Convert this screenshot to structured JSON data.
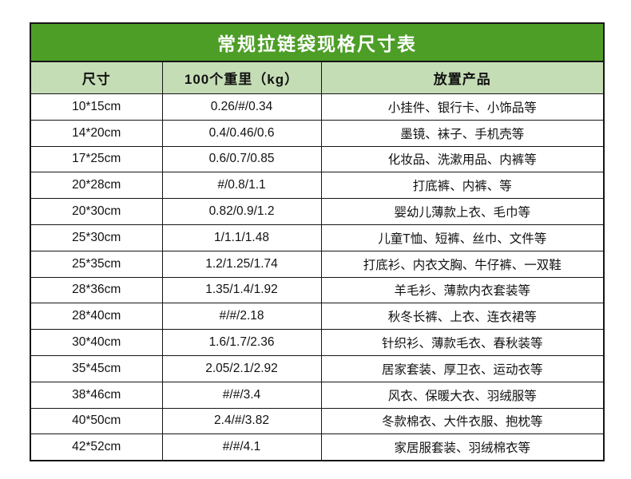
{
  "colors": {
    "title_bg": "#4d9e27",
    "title_text": "#ffffff",
    "header_bg": "#c5ddb5",
    "body_bg": "#ffffff",
    "border": "#151515",
    "body_text": "#111111"
  },
  "chart_data": {
    "type": "table",
    "title": "常规拉链袋现格尺寸表",
    "columns": [
      "尺寸",
      "100个重里（kg）",
      "放置产品"
    ],
    "rows": [
      [
        "10*15cm",
        "0.26/#/0.34",
        "小挂件、银行卡、小饰品等"
      ],
      [
        "14*20cm",
        "0.4/0.46/0.6",
        "墨镜、袜子、手机壳等"
      ],
      [
        "17*25cm",
        "0.6/0.7/0.85",
        "化妆品、洗漱用品、内裤等"
      ],
      [
        "20*28cm",
        "#/0.8/1.1",
        "打底裤、内裤、等"
      ],
      [
        "20*30cm",
        "0.82/0.9/1.2",
        "婴幼儿薄款上衣、毛巾等"
      ],
      [
        "25*30cm",
        "1/1.1/1.48",
        "儿童T恤、短裤、丝巾、文件等"
      ],
      [
        "25*35cm",
        "1.2/1.25/1.74",
        "打底衫、内衣文胸、牛仔裤、一双鞋"
      ],
      [
        "28*36cm",
        "1.35/1.4/1.92",
        "羊毛衫、薄款内衣套装等"
      ],
      [
        "28*40cm",
        "#/#/2.18",
        "秋冬长裤、上衣、连衣裙等"
      ],
      [
        "30*40cm",
        "1.6/1.7/2.36",
        "针织衫、薄款毛衣、春秋装等"
      ],
      [
        "35*45cm",
        "2.05/2.1/2.92",
        "居家套装、厚卫衣、运动衣等"
      ],
      [
        "38*46cm",
        "#/#/3.4",
        "风衣、保暖大衣、羽绒服等"
      ],
      [
        "40*50cm",
        "2.4/#/3.82",
        "冬款棉衣、大件衣服、抱枕等"
      ],
      [
        "42*52cm",
        "#/#/4.1",
        "家居服套装、羽绒棉衣等"
      ]
    ]
  }
}
